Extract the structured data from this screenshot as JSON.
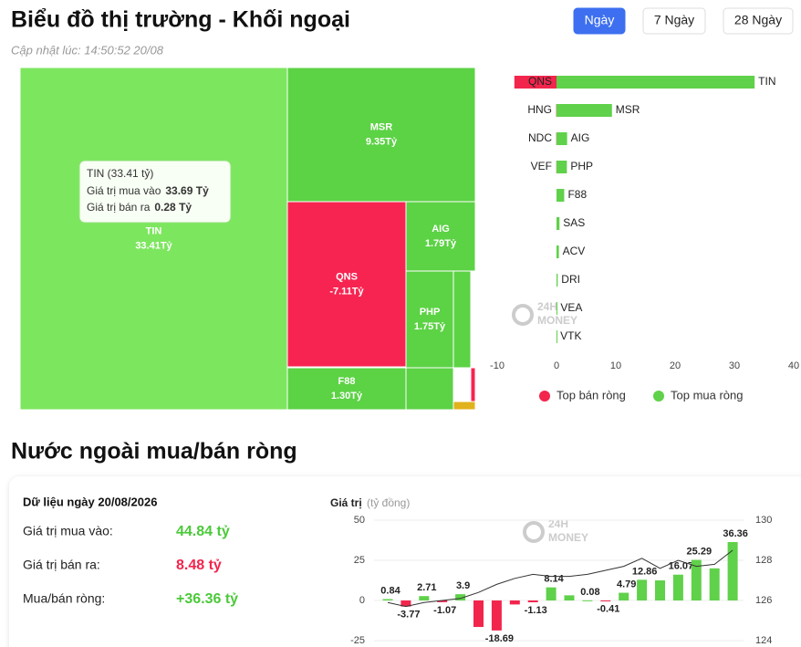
{
  "header": {
    "title": "Biểu đồ thị trường - Khối ngoại",
    "updated": "Cập nhật lúc: 14:50:52 20/08",
    "tabs": [
      "Ngày",
      "7 Ngày",
      "28 Ngày"
    ],
    "active_tab": 0
  },
  "chart_data": [
    {
      "type": "treemap",
      "items": [
        {
          "name": "TIN",
          "value": 33.41,
          "value_label": "33.41Tỷ",
          "color": "#7de65f"
        },
        {
          "name": "MSR",
          "value": 9.35,
          "value_label": "9.35Tỷ",
          "color": "#5cd245"
        },
        {
          "name": "QNS",
          "value": -7.11,
          "value_label": "-7.11Tỷ",
          "color": "#f72451"
        },
        {
          "name": "AIG",
          "value": 1.79,
          "value_label": "1.79Tỷ",
          "color": "#5cd245"
        },
        {
          "name": "PHP",
          "value": 1.75,
          "value_label": "1.75Tỷ",
          "color": "#5cd245"
        },
        {
          "name": "F88",
          "value": 1.3,
          "value_label": "1.30Tỷ",
          "color": "#5cd245"
        },
        {
          "name": null,
          "value": 0.6,
          "value_label": null,
          "color": "#5cd245"
        },
        {
          "name": null,
          "value": 0.5,
          "value_label": null,
          "color": "#5cd245"
        },
        {
          "name": null,
          "value": -0.3,
          "value_label": null,
          "color": "#f72451"
        },
        {
          "name": null,
          "value": 0.1,
          "value_label": null,
          "color": "#e0b21b"
        }
      ],
      "tooltip": {
        "title": "TIN (33.41 tỷ)",
        "lines": [
          {
            "label": "Giá trị mua vào",
            "value": "33.69 Tỷ"
          },
          {
            "label": "Giá trị bán ra",
            "value": "0.28 Tỷ"
          }
        ]
      }
    },
    {
      "type": "hbar",
      "series": [
        {
          "name": "Top bán ròng",
          "color": "#f2254d",
          "labels": [
            "QNS",
            "HNG",
            "NDC",
            "VEF",
            null,
            null,
            null,
            null,
            null,
            null
          ],
          "values": [
            -7.11,
            -0.05,
            -0.04,
            -0.03,
            null,
            null,
            null,
            null,
            null,
            null
          ]
        },
        {
          "name": "Top mua ròng",
          "color": "#5fd14a",
          "labels": [
            "TIN",
            "MSR",
            "AIG",
            "PHP",
            "F88",
            "SAS",
            "ACV",
            "DRI",
            "VEA",
            "VTK"
          ],
          "values": [
            33.41,
            9.35,
            1.79,
            1.75,
            1.3,
            0.5,
            0.4,
            0.2,
            0.05,
            0.02
          ]
        }
      ],
      "xlim": [
        -10,
        40
      ],
      "xticks": [
        -10,
        0,
        10,
        20,
        30,
        40
      ],
      "legend": "bottom",
      "watermark": [
        "24H",
        "MONEY"
      ]
    },
    {
      "type": "bar-line",
      "y_label": "Giá trị",
      "y_unit": "(tỷ đồng)",
      "ylim": [
        -25,
        50
      ],
      "yticks": [
        -25,
        0,
        25,
        50
      ],
      "y2lim": [
        124,
        130
      ],
      "y2ticks": [
        124,
        126,
        128,
        130
      ],
      "grid": true,
      "watermark": [
        "24H",
        "MONEY"
      ],
      "series": [
        {
          "type": "bar",
          "color": "#5fd14a",
          "negative_color": "#f2254d",
          "values": [
            0.84,
            -3.77,
            2.71,
            -1.07,
            3.9,
            -16.5,
            -18.69,
            -2.5,
            -1.13,
            8.14,
            3.2,
            0.08,
            -0.41,
            4.79,
            12.86,
            12.5,
            16.07,
            25.29,
            20,
            36.36
          ],
          "value_labels": [
            "0.84",
            "-3.77",
            "2.71",
            "-1.07",
            "3.9",
            null,
            "-18.69",
            null,
            "-1.13",
            "8.14",
            null,
            "0.08",
            "-0.41",
            "4.79",
            "12.86",
            null,
            "16.07",
            "25.29",
            null,
            "36.36"
          ]
        },
        {
          "type": "line",
          "axis": "y2",
          "color": "#333333",
          "values": [
            125.9,
            125.7,
            125.9,
            126,
            126.1,
            126.4,
            126.8,
            127.1,
            127.3,
            127.2,
            127.2,
            127.3,
            127.5,
            127.7,
            128.1,
            127.6,
            128,
            127.7,
            127.8,
            128.5
          ]
        }
      ]
    }
  ],
  "section": {
    "title": "Nước ngoài mua/bán ròng"
  },
  "summary": {
    "title": "Dữ liệu ngày 20/08/2026",
    "rows": [
      {
        "label": "Giá trị mua vào:",
        "value": "44.84 tỷ",
        "color": "#4cc93a"
      },
      {
        "label": "Giá trị bán ra:",
        "value": "8.48 tỷ",
        "color": "#f2254d"
      },
      {
        "label": "Mua/bán ròng:",
        "value": "+36.36 tỷ",
        "color": "#4cc93a"
      }
    ]
  }
}
